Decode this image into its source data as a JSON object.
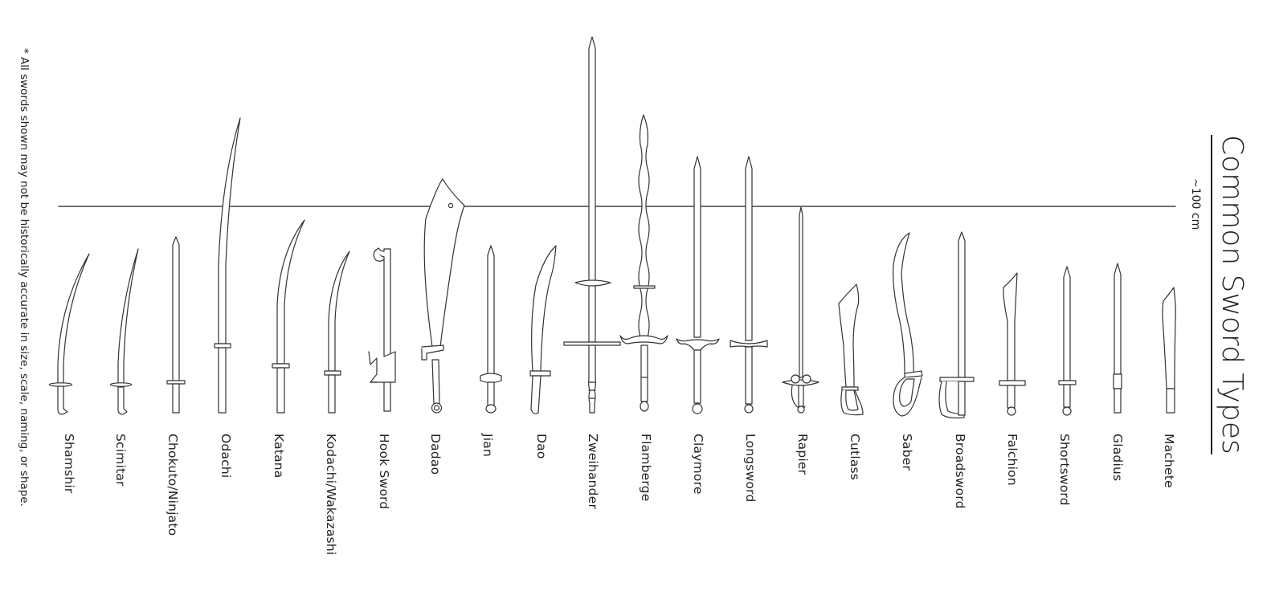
{
  "title": "Common Sword Types",
  "reference_line_label": "~100 cm",
  "footnote": "* All swords shown may not be historically accurate in size, scale, naming, or shape.",
  "line_color": "#333333",
  "swords": [
    {
      "name": "Shamshir",
      "icon": "curved-saber-icon"
    },
    {
      "name": "Scimitar",
      "icon": "curved-saber-icon"
    },
    {
      "name": "Chokuto/Ninjato",
      "icon": "straight-blade-icon"
    },
    {
      "name": "Odachi",
      "icon": "long-katana-icon"
    },
    {
      "name": "Katana",
      "icon": "katana-icon"
    },
    {
      "name": "Kodachi/Wakazashi",
      "icon": "short-katana-icon"
    },
    {
      "name": "Hook Sword",
      "icon": "hook-sword-icon"
    },
    {
      "name": "Dadao",
      "icon": "broad-chopper-icon"
    },
    {
      "name": "Jian",
      "icon": "straight-sword-icon"
    },
    {
      "name": "Dao",
      "icon": "curved-chopper-icon"
    },
    {
      "name": "Zweihander",
      "icon": "greatsword-icon"
    },
    {
      "name": "Flamberge",
      "icon": "wavy-greatsword-icon"
    },
    {
      "name": "Claymore",
      "icon": "greatsword-icon"
    },
    {
      "name": "Longsword",
      "icon": "longsword-icon"
    },
    {
      "name": "Rapier",
      "icon": "rapier-icon"
    },
    {
      "name": "Cutlass",
      "icon": "cutlass-icon"
    },
    {
      "name": "Saber",
      "icon": "saber-icon"
    },
    {
      "name": "Broadsword",
      "icon": "basket-hilt-sword-icon"
    },
    {
      "name": "Falchion",
      "icon": "falchion-icon"
    },
    {
      "name": "Shortsword",
      "icon": "shortsword-icon"
    },
    {
      "name": "Gladius",
      "icon": "gladius-icon"
    },
    {
      "name": "Machete",
      "icon": "machete-icon"
    }
  ]
}
